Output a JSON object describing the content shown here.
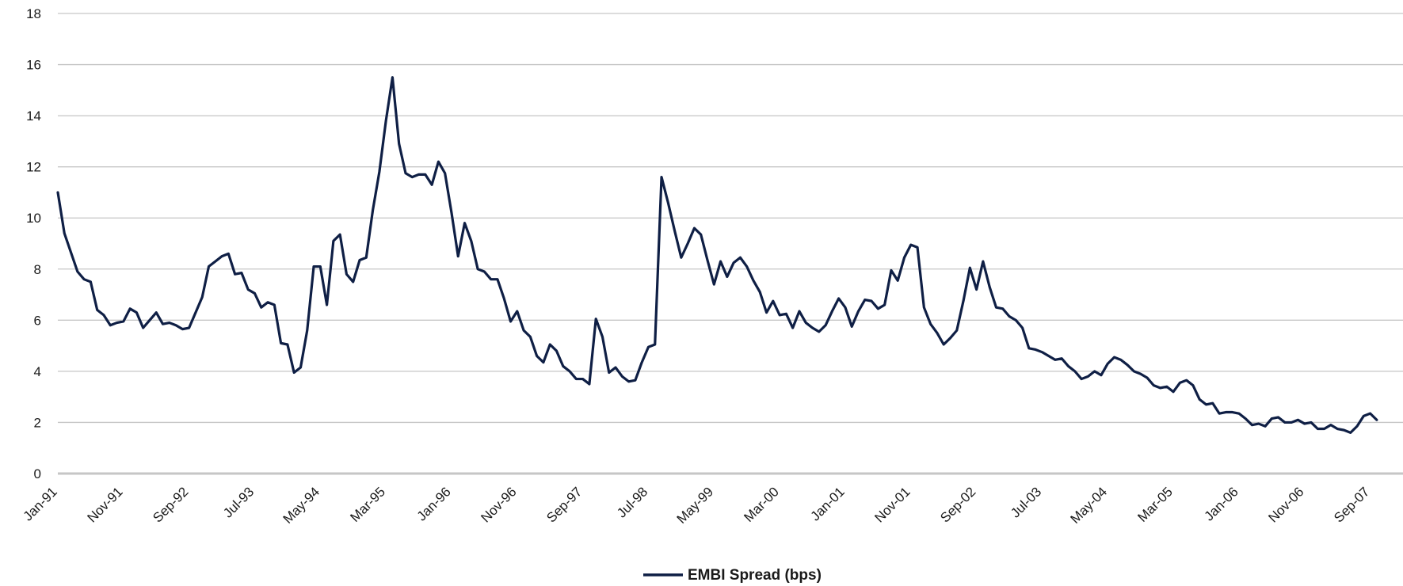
{
  "chart_data": {
    "type": "line",
    "title": "",
    "xlabel": "",
    "ylabel": "",
    "ylim": [
      0,
      18
    ],
    "y_ticks": [
      0,
      2,
      4,
      6,
      8,
      10,
      12,
      14,
      16,
      18
    ],
    "x_range": [
      "Jan-91",
      "Feb-08"
    ],
    "x_tick_labels": [
      "Jan-91",
      "Nov-91",
      "Sep-92",
      "Jul-93",
      "May-94",
      "Mar-95",
      "Jan-96",
      "Nov-96",
      "Sep-97",
      "Jul-98",
      "May-99",
      "Mar-00",
      "Jan-01",
      "Nov-01",
      "Sep-02",
      "Jul-03",
      "May-04",
      "Mar-05",
      "Jan-06",
      "Nov-06",
      "Sep-07"
    ],
    "grid": true,
    "legend_position": "bottom-center",
    "colors": {
      "series": "#0f1f45",
      "grid": "#c6c6c6",
      "axis": "#c6c6c6"
    },
    "series": [
      {
        "name": "EMBI Spread (bps)",
        "points": [
          [
            "Jan-91",
            11.0
          ],
          [
            "Feb-91",
            9.4
          ],
          [
            "Apr-91",
            7.9
          ],
          [
            "May-91",
            7.6
          ],
          [
            "Jun-91",
            7.5
          ],
          [
            "Jul-91",
            6.4
          ],
          [
            "Aug-91",
            6.2
          ],
          [
            "Sep-91",
            5.8
          ],
          [
            "Oct-91",
            5.9
          ],
          [
            "Nov-91",
            5.95
          ],
          [
            "Dec-91",
            6.45
          ],
          [
            "Jan-92",
            6.3
          ],
          [
            "Feb-92",
            5.7
          ],
          [
            "Mar-92",
            6.0
          ],
          [
            "Apr-92",
            6.3
          ],
          [
            "May-92",
            5.85
          ],
          [
            "Jun-92",
            5.9
          ],
          [
            "Jul-92",
            5.8
          ],
          [
            "Aug-92",
            5.65
          ],
          [
            "Sep-92",
            5.7
          ],
          [
            "Nov-92",
            6.9
          ],
          [
            "Dec-92",
            8.1
          ],
          [
            "Jan-93",
            8.3
          ],
          [
            "Feb-93",
            8.5
          ],
          [
            "Mar-93",
            8.6
          ],
          [
            "Apr-93",
            7.8
          ],
          [
            "May-93",
            7.85
          ],
          [
            "Jun-93",
            7.2
          ],
          [
            "Jul-93",
            7.05
          ],
          [
            "Aug-93",
            6.5
          ],
          [
            "Sep-93",
            6.7
          ],
          [
            "Oct-93",
            6.6
          ],
          [
            "Nov-93",
            5.1
          ],
          [
            "Dec-93",
            5.05
          ],
          [
            "Jan-94",
            3.95
          ],
          [
            "Feb-94",
            4.15
          ],
          [
            "Mar-94",
            5.6
          ],
          [
            "Apr-94",
            8.1
          ],
          [
            "May-94",
            8.1
          ],
          [
            "Jun-94",
            6.6
          ],
          [
            "Jul-94",
            9.1
          ],
          [
            "Aug-94",
            9.35
          ],
          [
            "Sep-94",
            7.8
          ],
          [
            "Oct-94",
            7.5
          ],
          [
            "Nov-94",
            8.35
          ],
          [
            "Dec-94",
            8.45
          ],
          [
            "Jan-95",
            10.3
          ],
          [
            "Feb-95",
            11.8
          ],
          [
            "Mar-95",
            13.8
          ],
          [
            "Apr-95",
            15.5
          ],
          [
            "May-95",
            12.9
          ],
          [
            "Jun-95",
            11.75
          ],
          [
            "Jul-95",
            11.6
          ],
          [
            "Aug-95",
            11.7
          ],
          [
            "Sep-95",
            11.7
          ],
          [
            "Oct-95",
            11.3
          ],
          [
            "Nov-95",
            12.2
          ],
          [
            "Dec-95",
            11.75
          ],
          [
            "Jan-96",
            10.2
          ],
          [
            "Feb-96",
            8.5
          ],
          [
            "Mar-96",
            9.8
          ],
          [
            "Apr-96",
            9.1
          ],
          [
            "May-96",
            8.0
          ],
          [
            "Jun-96",
            7.9
          ],
          [
            "Jul-96",
            7.6
          ],
          [
            "Aug-96",
            7.6
          ],
          [
            "Sep-96",
            6.85
          ],
          [
            "Oct-96",
            5.95
          ],
          [
            "Nov-96",
            6.35
          ],
          [
            "Dec-96",
            5.6
          ],
          [
            "Jan-97",
            5.35
          ],
          [
            "Feb-97",
            4.6
          ],
          [
            "Mar-97",
            4.35
          ],
          [
            "Apr-97",
            5.05
          ],
          [
            "May-97",
            4.8
          ],
          [
            "Jun-97",
            4.2
          ],
          [
            "Jul-97",
            4.0
          ],
          [
            "Aug-97",
            3.7
          ],
          [
            "Sep-97",
            3.7
          ],
          [
            "Oct-97",
            3.5
          ],
          [
            "Nov-97",
            6.05
          ],
          [
            "Dec-97",
            5.35
          ],
          [
            "Jan-98",
            3.95
          ],
          [
            "Feb-98",
            4.15
          ],
          [
            "Mar-98",
            3.8
          ],
          [
            "Apr-98",
            3.6
          ],
          [
            "May-98",
            3.65
          ],
          [
            "Jun-98",
            4.35
          ],
          [
            "Jul-98",
            4.95
          ],
          [
            "Aug-98",
            5.05
          ],
          [
            "Sep-98",
            11.6
          ],
          [
            "Oct-98",
            10.6
          ],
          [
            "Nov-98",
            9.5
          ],
          [
            "Dec-98",
            8.45
          ],
          [
            "Jan-99",
            9.0
          ],
          [
            "Feb-99",
            9.6
          ],
          [
            "Mar-99",
            9.35
          ],
          [
            "Apr-99",
            8.35
          ],
          [
            "May-99",
            7.4
          ],
          [
            "Jun-99",
            8.3
          ],
          [
            "Jul-99",
            7.7
          ],
          [
            "Aug-99",
            8.25
          ],
          [
            "Sep-99",
            8.45
          ],
          [
            "Oct-99",
            8.1
          ],
          [
            "Nov-99",
            7.55
          ],
          [
            "Dec-99",
            7.1
          ],
          [
            "Jan-00",
            6.3
          ],
          [
            "Feb-00",
            6.75
          ],
          [
            "Mar-00",
            6.2
          ],
          [
            "Apr-00",
            6.25
          ],
          [
            "May-00",
            5.7
          ],
          [
            "Jun-00",
            6.35
          ],
          [
            "Jul-00",
            5.9
          ],
          [
            "Aug-00",
            5.7
          ],
          [
            "Sep-00",
            5.55
          ],
          [
            "Oct-00",
            5.8
          ],
          [
            "Nov-00",
            6.35
          ],
          [
            "Dec-00",
            6.85
          ],
          [
            "Jan-01",
            6.5
          ],
          [
            "Feb-01",
            5.75
          ],
          [
            "Mar-01",
            6.35
          ],
          [
            "Apr-01",
            6.8
          ],
          [
            "May-01",
            6.75
          ],
          [
            "Jun-01",
            6.45
          ],
          [
            "Jul-01",
            6.6
          ],
          [
            "Aug-01",
            7.95
          ],
          [
            "Sep-01",
            7.55
          ],
          [
            "Oct-01",
            8.45
          ],
          [
            "Nov-01",
            8.95
          ],
          [
            "Dec-01",
            8.85
          ],
          [
            "Jan-02",
            6.5
          ],
          [
            "Feb-02",
            5.85
          ],
          [
            "Mar-02",
            5.5
          ],
          [
            "Apr-02",
            5.05
          ],
          [
            "May-02",
            5.3
          ],
          [
            "Jun-02",
            5.6
          ],
          [
            "Jul-02",
            6.75
          ],
          [
            "Aug-02",
            8.05
          ],
          [
            "Sep-02",
            7.2
          ],
          [
            "Oct-02",
            8.3
          ],
          [
            "Nov-02",
            7.3
          ],
          [
            "Dec-02",
            6.5
          ],
          [
            "Jan-03",
            6.45
          ],
          [
            "Feb-03",
            6.15
          ],
          [
            "Mar-03",
            6.0
          ],
          [
            "Apr-03",
            5.7
          ],
          [
            "May-03",
            4.9
          ],
          [
            "Jun-03",
            4.85
          ],
          [
            "Jul-03",
            4.75
          ],
          [
            "Aug-03",
            4.6
          ],
          [
            "Sep-03",
            4.45
          ],
          [
            "Oct-03",
            4.5
          ],
          [
            "Nov-03",
            4.2
          ],
          [
            "Dec-03",
            4.0
          ],
          [
            "Jan-04",
            3.7
          ],
          [
            "Feb-04",
            3.8
          ],
          [
            "Mar-04",
            4.0
          ],
          [
            "Apr-04",
            3.85
          ],
          [
            "May-04",
            4.3
          ],
          [
            "Jun-04",
            4.55
          ],
          [
            "Jul-04",
            4.45
          ],
          [
            "Aug-04",
            4.25
          ],
          [
            "Sep-04",
            4.0
          ],
          [
            "Oct-04",
            3.9
          ],
          [
            "Nov-04",
            3.75
          ],
          [
            "Dec-04",
            3.45
          ],
          [
            "Jan-05",
            3.35
          ],
          [
            "Feb-05",
            3.4
          ],
          [
            "Mar-05",
            3.2
          ],
          [
            "Apr-05",
            3.55
          ],
          [
            "May-05",
            3.65
          ],
          [
            "Jun-05",
            3.45
          ],
          [
            "Jul-05",
            2.9
          ],
          [
            "Aug-05",
            2.7
          ],
          [
            "Sep-05",
            2.75
          ],
          [
            "Oct-05",
            2.35
          ],
          [
            "Nov-05",
            2.4
          ],
          [
            "Dec-05",
            2.4
          ],
          [
            "Jan-06",
            2.35
          ],
          [
            "Feb-06",
            2.15
          ],
          [
            "Mar-06",
            1.9
          ],
          [
            "Apr-06",
            1.95
          ],
          [
            "May-06",
            1.85
          ],
          [
            "Jun-06",
            2.15
          ],
          [
            "Jul-06",
            2.2
          ],
          [
            "Aug-06",
            2.0
          ],
          [
            "Sep-06",
            2.0
          ],
          [
            "Oct-06",
            2.1
          ],
          [
            "Nov-06",
            1.95
          ],
          [
            "Dec-06",
            2.0
          ],
          [
            "Jan-07",
            1.75
          ],
          [
            "Feb-07",
            1.75
          ],
          [
            "Mar-07",
            1.9
          ],
          [
            "Apr-07",
            1.75
          ],
          [
            "May-07",
            1.7
          ],
          [
            "Jun-07",
            1.6
          ],
          [
            "Jul-07",
            1.85
          ],
          [
            "Aug-07",
            2.25
          ],
          [
            "Sep-07",
            2.35
          ],
          [
            "Oct-07",
            2.1
          ]
        ]
      }
    ]
  }
}
